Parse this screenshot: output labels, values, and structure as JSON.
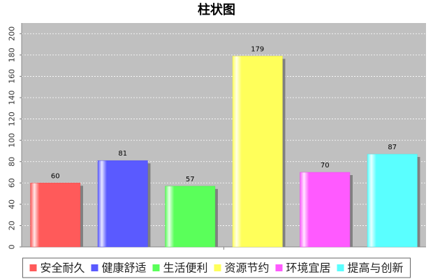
{
  "chart_data": {
    "type": "bar",
    "title": "柱状图",
    "xlabel": "",
    "ylabel": "",
    "categories": [
      "安全耐久",
      "健康舒适",
      "生活便利",
      "资源节约",
      "环境宜居",
      "提高与创新"
    ],
    "values": [
      60,
      81,
      57,
      179,
      70,
      87
    ],
    "colors": [
      "#ff5a5a",
      "#5a5aff",
      "#5aff5a",
      "#ffff5a",
      "#ff5aff",
      "#5affff"
    ],
    "ylim": [
      0,
      210
    ],
    "yticks": [
      0,
      20,
      40,
      60,
      80,
      100,
      120,
      140,
      160,
      180,
      200
    ],
    "grid": true,
    "legend_position": "bottom",
    "plot_background": "#c0c0c0"
  }
}
